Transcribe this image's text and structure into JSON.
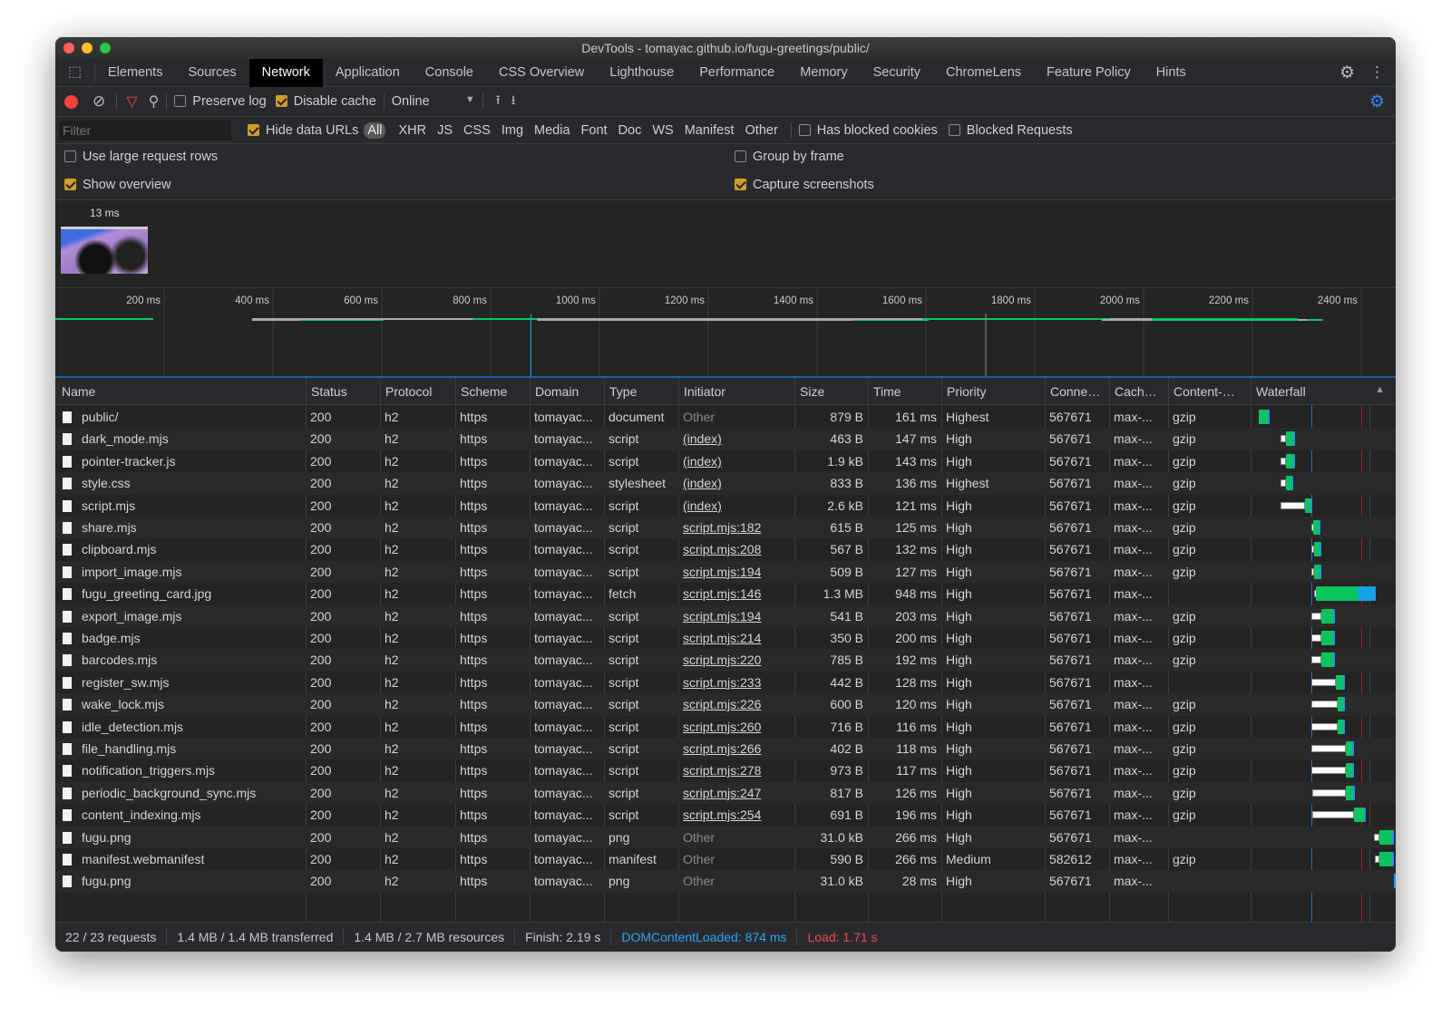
{
  "window": {
    "title": "DevTools - tomayac.github.io/fugu-greetings/public/"
  },
  "tabs": [
    {
      "label": "Elements"
    },
    {
      "label": "Sources"
    },
    {
      "label": "Network",
      "active": true
    },
    {
      "label": "Application"
    },
    {
      "label": "Console"
    },
    {
      "label": "CSS Overview"
    },
    {
      "label": "Lighthouse"
    },
    {
      "label": "Performance"
    },
    {
      "label": "Memory"
    },
    {
      "label": "Security"
    },
    {
      "label": "ChromeLens"
    },
    {
      "label": "Feature Policy"
    },
    {
      "label": "Hints"
    }
  ],
  "toolbar": {
    "preserve_log": "Preserve log",
    "preserve_log_checked": false,
    "disable_cache": "Disable cache",
    "disable_cache_checked": true,
    "throttling": "Online"
  },
  "filterbar": {
    "placeholder": "Filter",
    "hide_data_urls": "Hide data URLs",
    "hide_data_urls_checked": true,
    "types": [
      "All",
      "XHR",
      "JS",
      "CSS",
      "Img",
      "Media",
      "Font",
      "Doc",
      "WS",
      "Manifest",
      "Other"
    ],
    "active_type": "All",
    "has_blocked_cookies": "Has blocked cookies",
    "blocked_requests": "Blocked Requests"
  },
  "settings": {
    "large_rows": "Use large request rows",
    "large_rows_checked": false,
    "show_overview": "Show overview",
    "show_overview_checked": true,
    "group_by_frame": "Group by frame",
    "group_by_frame_checked": false,
    "capture_screenshots": "Capture screenshots",
    "capture_screenshots_checked": true
  },
  "screenshot": {
    "time": "13 ms"
  },
  "overview": {
    "ticks": [
      "200 ms",
      "400 ms",
      "600 ms",
      "800 ms",
      "1000 ms",
      "1200 ms",
      "1400 ms",
      "1600 ms",
      "1800 ms",
      "2000 ms",
      "2200 ms",
      "2400 ms"
    ],
    "dom_content_loaded_ms": 874,
    "load_ms": 1710
  },
  "colors": {
    "dcl": "#2196f3",
    "load": "#e53935",
    "waiting": "#ffffff",
    "download": "#0cc45f",
    "accent": "#d39b27",
    "record": "#f44336"
  },
  "columns": [
    "Name",
    "Status",
    "Protocol",
    "Scheme",
    "Domain",
    "Type",
    "Initiator",
    "Size",
    "Time",
    "Priority",
    "Conne…",
    "Cach…",
    "Content-…",
    "Waterfall"
  ],
  "rows": [
    [
      "public/",
      "200",
      "h2",
      "https",
      "tomayac...",
      "document",
      "Other",
      "879 B",
      "161 ms",
      "Highest",
      "567671",
      "max-...",
      "gzip",
      [
        0,
        0,
        180
      ]
    ],
    [
      "dark_mode.mjs",
      "200",
      "h2",
      "https",
      "tomayac...",
      "script",
      "(index)",
      "463 B",
      "147 ms",
      "High",
      "567671",
      "max-...",
      "gzip",
      [
        362,
        450,
        603
      ]
    ],
    [
      "pointer-tracker.js",
      "200",
      "h2",
      "https",
      "tomayac...",
      "script",
      "(index)",
      "1.9 kB",
      "143 ms",
      "High",
      "567671",
      "max-...",
      "gzip",
      [
        362,
        450,
        603
      ]
    ],
    [
      "style.css",
      "200",
      "h2",
      "https",
      "tomayac...",
      "stylesheet",
      "(index)",
      "833 B",
      "136 ms",
      "Highest",
      "567671",
      "max-...",
      "gzip",
      [
        362,
        450,
        585
      ]
    ],
    [
      "script.mjs",
      "200",
      "h2",
      "https",
      "tomayac...",
      "script",
      "(index)",
      "2.6 kB",
      "121 ms",
      "High",
      "567671",
      "max-...",
      "gzip",
      [
        362,
        768,
        896
      ]
    ],
    [
      "share.mjs",
      "200",
      "h2",
      "https",
      "tomayac...",
      "script",
      "script.mjs:182",
      "615 B",
      "125 ms",
      "High",
      "567671",
      "max-...",
      "gzip",
      [
        886,
        911,
        1040
      ]
    ],
    [
      "clipboard.mjs",
      "200",
      "h2",
      "https",
      "tomayac...",
      "script",
      "script.mjs:208",
      "567 B",
      "132 ms",
      "High",
      "567671",
      "max-...",
      "gzip",
      [
        886,
        922,
        1055
      ]
    ],
    [
      "import_image.mjs",
      "200",
      "h2",
      "https",
      "tomayac...",
      "script",
      "script.mjs:194",
      "509 B",
      "127 ms",
      "High",
      "567671",
      "max-...",
      "gzip",
      [
        886,
        922,
        1055
      ]
    ],
    [
      "fugu_greeting_card.jpg",
      "200",
      "h2",
      "https",
      "tomayac...",
      "fetch",
      "script.mjs:146",
      "1.3 MB",
      "948 ms",
      "High",
      "567671",
      "max-...",
      "",
      [
        927,
        952,
        1954
      ]
    ],
    [
      "export_image.mjs",
      "200",
      "h2",
      "https",
      "tomayac...",
      "script",
      "script.mjs:194",
      "541 B",
      "203 ms",
      "High",
      "567671",
      "max-...",
      "gzip",
      [
        886,
        1055,
        1271
      ]
    ],
    [
      "badge.mjs",
      "200",
      "h2",
      "https",
      "tomayac...",
      "script",
      "script.mjs:214",
      "350 B",
      "200 ms",
      "High",
      "567671",
      "max-...",
      "gzip",
      [
        886,
        1055,
        1271
      ]
    ],
    [
      "barcodes.mjs",
      "200",
      "h2",
      "https",
      "tomayac...",
      "script",
      "script.mjs:220",
      "785 B",
      "192 ms",
      "High",
      "567671",
      "max-...",
      "gzip",
      [
        886,
        1055,
        1271
      ]
    ],
    [
      "register_sw.mjs",
      "200",
      "h2",
      "https",
      "tomayac...",
      "script",
      "script.mjs:233",
      "442 B",
      "128 ms",
      "High",
      "567671",
      "max-...",
      "",
      [
        886,
        1297,
        1441
      ]
    ],
    [
      "wake_lock.mjs",
      "200",
      "h2",
      "https",
      "tomayac...",
      "script",
      "script.mjs:226",
      "600 B",
      "120 ms",
      "High",
      "567671",
      "max-...",
      "gzip",
      [
        886,
        1322,
        1441
      ]
    ],
    [
      "idle_detection.mjs",
      "200",
      "h2",
      "https",
      "tomayac...",
      "script",
      "script.mjs:260",
      "716 B",
      "116 ms",
      "High",
      "567671",
      "max-...",
      "gzip",
      [
        886,
        1322,
        1441
      ]
    ],
    [
      "file_handling.mjs",
      "200",
      "h2",
      "https",
      "tomayac...",
      "script",
      "script.mjs:266",
      "402 B",
      "118 ms",
      "High",
      "567671",
      "max-...",
      "gzip",
      [
        886,
        1466,
        1590
      ]
    ],
    [
      "notification_triggers.mjs",
      "200",
      "h2",
      "https",
      "tomayac...",
      "script",
      "script.mjs:278",
      "973 B",
      "117 ms",
      "High",
      "567671",
      "max-...",
      "gzip",
      [
        886,
        1466,
        1590
      ]
    ],
    [
      "periodic_background_sync.mjs",
      "200",
      "h2",
      "https",
      "tomayac...",
      "script",
      "script.mjs:247",
      "817 B",
      "126 ms",
      "High",
      "567671",
      "max-...",
      "gzip",
      [
        900,
        1466,
        1605
      ]
    ],
    [
      "content_indexing.mjs",
      "200",
      "h2",
      "https",
      "tomayac...",
      "script",
      "script.mjs:254",
      "691 B",
      "196 ms",
      "High",
      "567671",
      "max-...",
      "gzip",
      [
        900,
        1594,
        1794
      ]
    ],
    [
      "fugu.png",
      "200",
      "h2",
      "https",
      "tomayac...",
      "png",
      "Other",
      "31.0 kB",
      "266 ms",
      "High",
      "567671",
      "max-...",
      "",
      [
        1923,
        2015,
        2283
      ]
    ],
    [
      "manifest.webmanifest",
      "200",
      "h2",
      "https",
      "tomayac...",
      "manifest",
      "Other",
      "590 B",
      "266 ms",
      "Medium",
      "582612",
      "max-...",
      "gzip",
      [
        1938,
        2015,
        2283
      ]
    ],
    [
      "fugu.png",
      "200",
      "h2",
      "https",
      "tomayac...",
      "png",
      "Other",
      "31.0 kB",
      "28 ms",
      "High",
      "567671",
      "max-...",
      "",
      [
        2283,
        2300,
        2330
      ]
    ]
  ],
  "footer": {
    "requests": "22 / 23 requests",
    "transferred": "1.4 MB / 1.4 MB transferred",
    "resources": "1.4 MB / 2.7 MB resources",
    "finish": "Finish: 2.19 s",
    "dcl": "DOMContentLoaded: 874 ms",
    "load": "Load: 1.71 s"
  }
}
